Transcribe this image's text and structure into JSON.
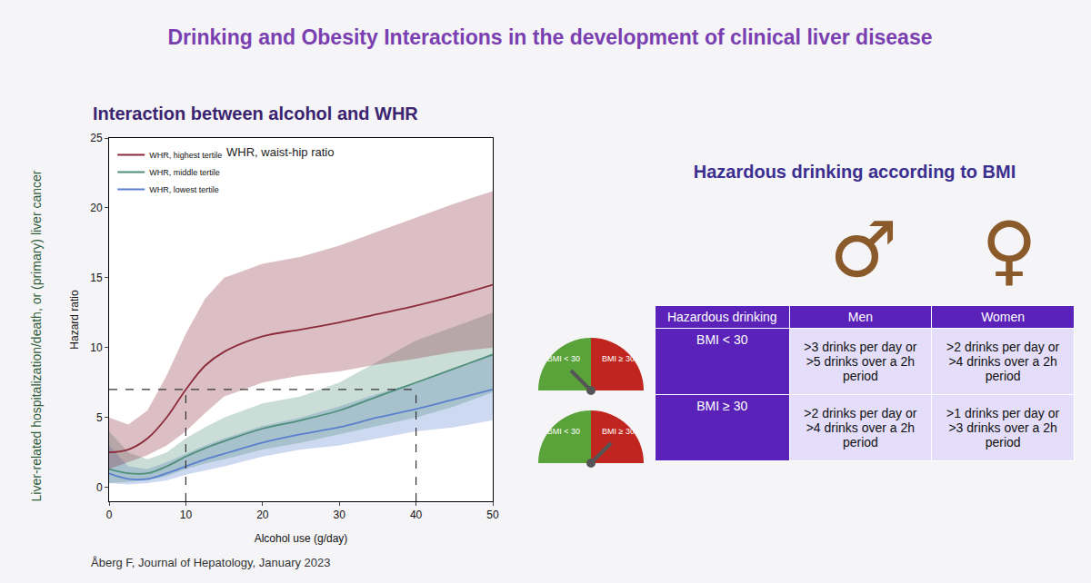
{
  "slide": {
    "title": "Drinking and Obesity Interactions in the development of clinical liver disease",
    "citation": "Åberg F, Journal of Hepatology, January 2023"
  },
  "chart_data": {
    "type": "line",
    "title": "Interaction between alcohol and WHR",
    "annotation": "WHR, waist-hip ratio",
    "outcome_label": "Liver-related hospitalization/death, or (primary) liver cancer",
    "x_label": "Alcohol use (g/day)",
    "y_label": "Hazard ratio",
    "x": [
      0,
      2.5,
      5,
      7.5,
      10,
      12.5,
      15,
      20,
      25,
      30,
      35,
      40,
      45,
      50
    ],
    "series": [
      {
        "name": "WHR, lowest tertile",
        "color": "#5b7fcf",
        "values": [
          1.0,
          0.6,
          0.6,
          1.0,
          1.5,
          2.0,
          2.4,
          3.2,
          3.8,
          4.3,
          5.0,
          5.6,
          6.3,
          7.0
        ],
        "ci_lower": [
          0.3,
          0.2,
          0.3,
          0.5,
          0.9,
          1.2,
          1.5,
          2.2,
          2.7,
          3.0,
          3.5,
          4.0,
          4.3,
          4.8
        ],
        "ci_upper": [
          3.0,
          1.5,
          1.3,
          1.8,
          2.4,
          3.0,
          3.5,
          4.4,
          5.0,
          5.8,
          6.7,
          7.5,
          8.5,
          9.5
        ]
      },
      {
        "name": "WHR, middle tertile",
        "color": "#4f8f7a",
        "values": [
          1.3,
          1.0,
          1.0,
          1.5,
          2.2,
          2.8,
          3.3,
          4.2,
          4.8,
          5.5,
          6.5,
          7.5,
          8.5,
          9.5
        ],
        "ci_lower": [
          0.3,
          0.4,
          0.5,
          0.8,
          1.3,
          1.7,
          2.0,
          2.7,
          3.2,
          3.8,
          4.4,
          5.0,
          5.8,
          6.8
        ],
        "ci_upper": [
          4.0,
          2.5,
          2.0,
          2.5,
          3.5,
          4.3,
          5.0,
          6.0,
          6.5,
          7.5,
          9.0,
          10.5,
          11.5,
          12.5
        ]
      },
      {
        "name": "WHR, highest tertile",
        "color": "#8b2b3a",
        "values": [
          2.5,
          2.7,
          3.5,
          5.0,
          7.0,
          8.7,
          9.7,
          10.8,
          11.3,
          11.8,
          12.4,
          13.0,
          13.7,
          14.5
        ],
        "ci_lower": [
          1.3,
          1.8,
          2.3,
          3.0,
          4.0,
          5.3,
          6.5,
          7.5,
          8.0,
          8.3,
          8.8,
          9.2,
          9.7,
          10.0
        ],
        "ci_upper": [
          5.0,
          4.5,
          5.5,
          8.0,
          11.0,
          13.5,
          15.0,
          16.0,
          16.5,
          17.3,
          18.3,
          19.3,
          20.3,
          21.2
        ]
      }
    ],
    "reference_lines": {
      "x": [
        10,
        40
      ],
      "y": 7
    },
    "xlim": [
      0,
      50
    ],
    "xticks": [
      0,
      10,
      20,
      30,
      40,
      50
    ],
    "ylim": [
      -1,
      25
    ],
    "yticks": [
      0,
      5,
      10,
      15,
      20,
      25
    ],
    "grid": false,
    "legend": "upper left"
  },
  "table_panel": {
    "title": "Hazardous drinking according to BMI",
    "symbols": [
      "♂",
      "♀"
    ],
    "gauge_labels": [
      "BMI < 30",
      "BMI ≥ 30"
    ],
    "table": {
      "header": [
        "Hazardous drinking",
        "Men",
        "Women"
      ],
      "rows": [
        [
          "BMI < 30",
          ">3 drinks per day or >5 drinks over a 2h period",
          ">2 drinks per day or >4 drinks over a 2h period"
        ],
        [
          "BMI ≥ 30",
          ">2 drinks per day or >4 drinks over a 2h period",
          ">1 drinks per day or >3 drinks over a 2h period"
        ]
      ]
    }
  }
}
